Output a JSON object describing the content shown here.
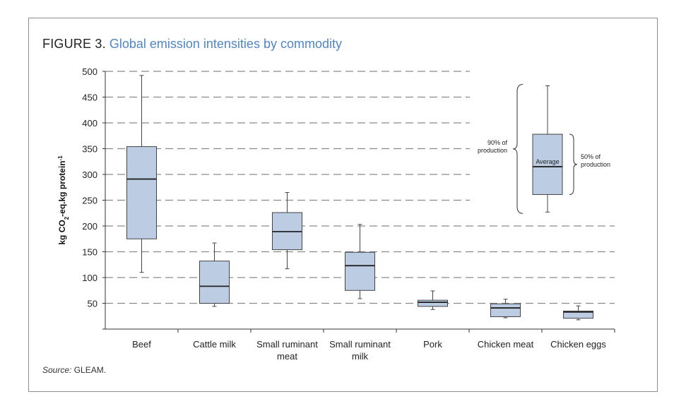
{
  "figure": {
    "number_label": "FIGURE 3.",
    "title": "Global emission intensities by commodity",
    "source_label": "Source:",
    "source_value": "GLEAM."
  },
  "chart_data": {
    "type": "boxplot",
    "title": "Global emission intensities by commodity",
    "xlabel": "",
    "ylabel_main": "kg CO",
    "ylabel_sub": "2",
    "ylabel_rest": "-eq.kg protein",
    "ylabel_sup": "-1",
    "ylim": [
      0,
      500
    ],
    "yticks": [
      50,
      100,
      150,
      200,
      250,
      300,
      350,
      400,
      450,
      500
    ],
    "grid": true,
    "categories": [
      {
        "label_lines": [
          "Beef"
        ],
        "whisker_low": 110,
        "q1": 175,
        "median": 291,
        "q3": 354,
        "whisker_high": 492
      },
      {
        "label_lines": [
          "Cattle milk"
        ],
        "whisker_low": 44,
        "q1": 50,
        "median": 83,
        "q3": 132,
        "whisker_high": 167
      },
      {
        "label_lines": [
          "Small ruminant",
          "meat"
        ],
        "whisker_low": 117,
        "q1": 154,
        "median": 189,
        "q3": 226,
        "whisker_high": 265
      },
      {
        "label_lines": [
          "Small ruminant",
          "milk"
        ],
        "whisker_low": 59,
        "q1": 75,
        "median": 123,
        "q3": 149,
        "whisker_high": 203
      },
      {
        "label_lines": [
          "Pork"
        ],
        "whisker_low": 38,
        "q1": 44,
        "median": 52,
        "q3": 56,
        "whisker_high": 74
      },
      {
        "label_lines": [
          "Chicken meat"
        ],
        "whisker_low": 22,
        "q1": 24,
        "median": 41,
        "q3": 49,
        "whisker_high": 58
      },
      {
        "label_lines": [
          "Chicken eggs"
        ],
        "whisker_low": 18,
        "q1": 21,
        "median": 33,
        "q3": 35,
        "whisker_high": 45
      }
    ],
    "legend": {
      "placement": "top-right",
      "average_label": "Average",
      "ninety_label_lines": [
        "90% of",
        "production"
      ],
      "fifty_label_lines": [
        "50% of",
        "production"
      ],
      "whisker_low": 227,
      "q1": 261,
      "median": 315,
      "q3": 378,
      "whisker_high": 472
    },
    "colors": {
      "box_fill": "#bccde3",
      "box_stroke": "#444444",
      "grid": "#8a8a8a",
      "axis": "#333333"
    }
  }
}
